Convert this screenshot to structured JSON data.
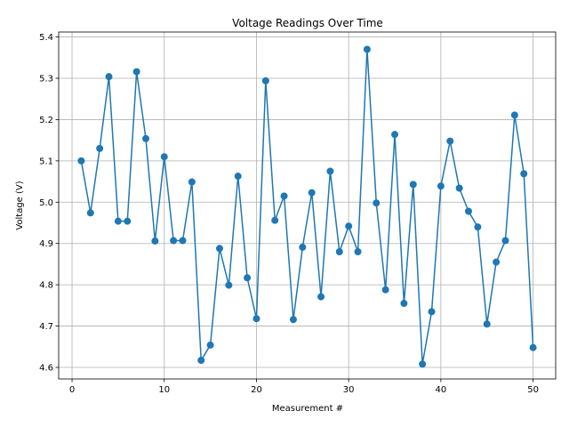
{
  "chart_data": {
    "type": "line",
    "title": "Voltage Readings Over Time",
    "xlabel": "Measurement #",
    "ylabel": "Voltage (V)",
    "xlim": [
      -1.45,
      52.45
    ],
    "ylim": [
      4.572,
      5.412
    ],
    "xticks": [
      0,
      10,
      20,
      30,
      40,
      50
    ],
    "yticks": [
      4.6,
      4.7,
      4.8,
      4.9,
      5.0,
      5.1,
      5.2,
      5.3,
      5.4
    ],
    "ytick_labels": [
      "4.6",
      "4.7",
      "4.8",
      "4.9",
      "5.0",
      "5.1",
      "5.2",
      "5.3",
      "5.4"
    ],
    "grid": true,
    "marker": "circle",
    "color": "#1f77b4",
    "x": [
      1,
      2,
      3,
      4,
      5,
      6,
      7,
      8,
      9,
      10,
      11,
      12,
      13,
      14,
      15,
      16,
      17,
      18,
      19,
      20,
      21,
      22,
      23,
      24,
      25,
      26,
      27,
      28,
      29,
      30,
      31,
      32,
      33,
      34,
      35,
      36,
      37,
      38,
      39,
      40,
      41,
      42,
      43,
      44,
      45,
      46,
      47,
      48,
      49,
      50
    ],
    "values": [
      5.1,
      4.974,
      5.13,
      5.304,
      4.954,
      4.954,
      5.316,
      5.154,
      4.906,
      5.11,
      4.907,
      4.907,
      5.049,
      4.617,
      4.654,
      4.888,
      4.799,
      5.063,
      4.817,
      4.718,
      5.294,
      4.956,
      5.015,
      4.716,
      4.891,
      5.023,
      4.771,
      5.075,
      4.88,
      4.942,
      4.88,
      5.37,
      4.998,
      4.788,
      5.164,
      4.755,
      5.043,
      4.608,
      4.735,
      5.039,
      5.148,
      5.034,
      4.978,
      4.94,
      4.705,
      4.855,
      4.907,
      5.211,
      5.069,
      4.648
    ]
  }
}
